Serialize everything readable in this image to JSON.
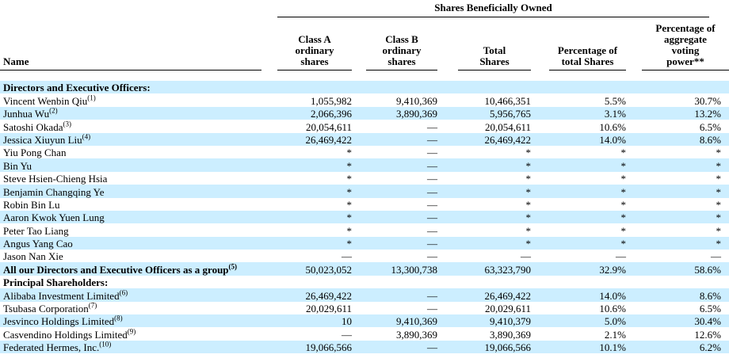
{
  "colors": {
    "row_highlight": "#cceeff",
    "text": "#000000",
    "rule": "#000000"
  },
  "table": {
    "span_header": "Shares Beneficially Owned",
    "name_column_header": "Name",
    "columns": [
      {
        "id": "class-a-shares",
        "label": "Class A\nordinary\nshares"
      },
      {
        "id": "class-b-shares",
        "label": "Class B\nordinary\nshares"
      },
      {
        "id": "total-shares",
        "label": "Total\nShares"
      },
      {
        "id": "pct-total-shares",
        "label": "Percentage of\ntotal Shares"
      },
      {
        "id": "pct-voting-power",
        "label": "Percentage of\naggregate\nvoting\npower**"
      }
    ],
    "rows": [
      {
        "name": "Directors and Executive Officers:",
        "bold": true,
        "section": true,
        "values": [
          "",
          "",
          "",
          "",
          ""
        ]
      },
      {
        "name": "Vincent Wenbin Qiu",
        "sup": "(1)",
        "values": [
          "1,055,982",
          "9,410,369",
          "10,466,351",
          "5.5%",
          "30.7%"
        ]
      },
      {
        "name": "Junhua Wu",
        "sup": "(2)",
        "values": [
          "2,066,396",
          "3,890,369",
          "5,956,765",
          "3.1%",
          "13.2%"
        ]
      },
      {
        "name": "Satoshi Okada",
        "sup": "(3)",
        "values": [
          "20,054,611",
          "—",
          "20,054,611",
          "10.6%",
          "6.5%"
        ]
      },
      {
        "name": "Jessica Xiuyun Liu",
        "sup": "(4)",
        "values": [
          "26,469,422",
          "—",
          "26,469,422",
          "14.0%",
          "8.6%"
        ]
      },
      {
        "name": "Yiu Pong Chan",
        "values": [
          "*",
          "—",
          "*",
          "*",
          "*"
        ]
      },
      {
        "name": "Bin Yu",
        "values": [
          "*",
          "—",
          "*",
          "*",
          "*"
        ]
      },
      {
        "name": "Steve Hsien-Chieng Hsia",
        "values": [
          "*",
          "—",
          "*",
          "*",
          "*"
        ]
      },
      {
        "name": "Benjamin Changqing Ye",
        "values": [
          "*",
          "—",
          "*",
          "*",
          "*"
        ]
      },
      {
        "name": "Robin Bin Lu",
        "values": [
          "*",
          "—",
          "*",
          "*",
          "*"
        ]
      },
      {
        "name": "Aaron Kwok Yuen Lung",
        "values": [
          "*",
          "—",
          "*",
          "*",
          "*"
        ]
      },
      {
        "name": "Peter Tao Liang",
        "values": [
          "*",
          "—",
          "*",
          "*",
          "*"
        ]
      },
      {
        "name": "Angus Yang Cao",
        "values": [
          "*",
          "—",
          "*",
          "*",
          "*"
        ]
      },
      {
        "name": "Jason Nan Xie",
        "values": [
          "—",
          "—",
          "—",
          "—",
          "—"
        ]
      },
      {
        "name": "All our Directors and Executive Officers as a group",
        "sup": "(5)",
        "bold": true,
        "values": [
          "50,023,052",
          "13,300,738",
          "63,323,790",
          "32.9%",
          "58.6%"
        ]
      },
      {
        "name": "Principal Shareholders:",
        "bold": true,
        "section": true,
        "values": [
          "",
          "",
          "",
          "",
          ""
        ]
      },
      {
        "name": "Alibaba Investment Limited",
        "sup": "(6)",
        "values": [
          "26,469,422",
          "—",
          "26,469,422",
          "14.0%",
          "8.6%"
        ]
      },
      {
        "name": "Tsubasa Corporation",
        "sup": "(7)",
        "values": [
          "20,029,611",
          "—",
          "20,029,611",
          "10.6%",
          "6.5%"
        ]
      },
      {
        "name": "Jesvinco Holdings Limited",
        "sup": "(8)",
        "values": [
          "10",
          "9,410,369",
          "9,410,379",
          "5.0%",
          "30.4%"
        ]
      },
      {
        "name": "Casvendino Holdings Limited",
        "sup": "(9)",
        "values": [
          "—",
          "3,890,369",
          "3,890,369",
          "2.1%",
          "12.6%"
        ]
      },
      {
        "name": "Federated Hermes, Inc.",
        "sup": "(10)",
        "values": [
          "19,066,566",
          "—",
          "19,066,566",
          "10.1%",
          "6.2%"
        ]
      }
    ]
  }
}
